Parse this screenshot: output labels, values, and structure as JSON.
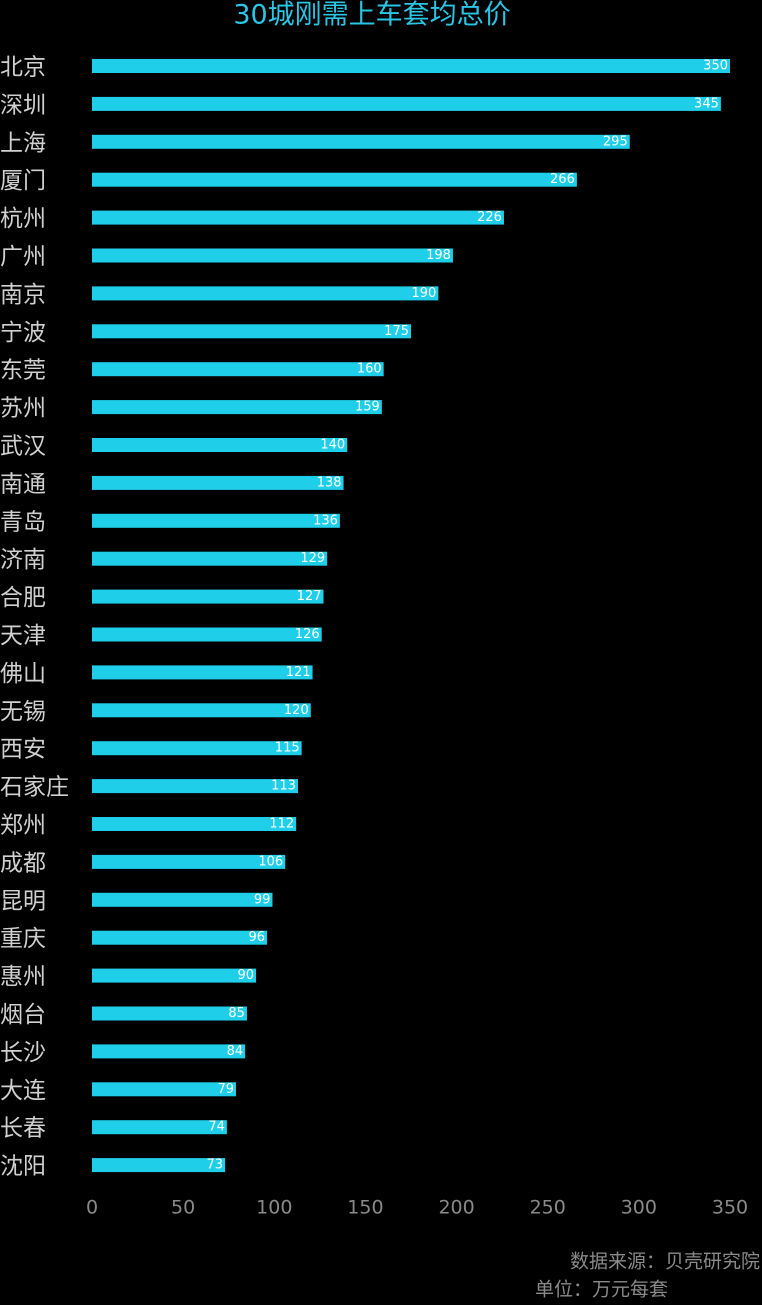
{
  "chart_data": {
    "type": "hbar",
    "title": "30城刚需上车套均总价",
    "categories": [
      "北京",
      "深圳",
      "上海",
      "厦门",
      "杭州",
      "广州",
      "南京",
      "宁波",
      "东莞",
      "苏州",
      "武汉",
      "南通",
      "青岛",
      "济南",
      "合肥",
      "天津",
      "佛山",
      "无锡",
      "西安",
      "石家庄",
      "郑州",
      "成都",
      "昆明",
      "重庆",
      "惠州",
      "烟台",
      "长沙",
      "大连",
      "长春",
      "沈阳"
    ],
    "values": [
      350,
      345,
      295,
      266,
      226,
      198,
      190,
      175,
      160,
      159,
      140,
      138,
      136,
      129,
      127,
      126,
      121,
      120,
      115,
      113,
      112,
      106,
      99,
      96,
      90,
      85,
      84,
      79,
      74,
      73
    ],
    "color": "#1fcfea",
    "xlim": [
      0,
      350
    ],
    "xticks": [
      0,
      50,
      100,
      150,
      200,
      250,
      300,
      350
    ],
    "source": "数据来源：贝壳研究院",
    "unit": "单位：万元每套"
  }
}
